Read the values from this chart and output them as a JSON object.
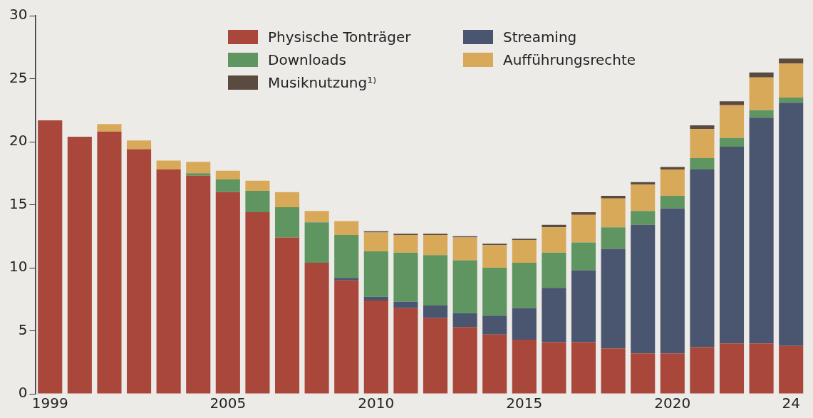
{
  "chart_data": {
    "type": "bar",
    "stacked": true,
    "legend": "top left",
    "grid": false,
    "categories": [
      "1999",
      null,
      null,
      null,
      null,
      null,
      "2005",
      null,
      null,
      null,
      null,
      "2010",
      null,
      null,
      null,
      null,
      "2015",
      null,
      null,
      null,
      null,
      "2020",
      null,
      null,
      null,
      "24"
    ],
    "ylim": [
      0,
      30
    ],
    "yticks": [
      0,
      5,
      10,
      15,
      20,
      25,
      30
    ],
    "series": [
      {
        "name": "Physische Tonträger",
        "color": "#a8473a",
        "values": [
          21.7,
          20.4,
          20.8,
          19.4,
          17.8,
          17.3,
          16.0,
          14.4,
          12.4,
          10.4,
          9.0,
          7.4,
          6.8,
          6.0,
          5.3,
          4.7,
          4.3,
          4.1,
          4.1,
          3.6,
          3.2,
          3.2,
          3.7,
          4.0,
          4.0,
          3.8
        ]
      },
      {
        "name": "Streaming",
        "color": "#4a5570",
        "values": [
          null,
          null,
          null,
          null,
          null,
          null,
          null,
          null,
          null,
          null,
          0.2,
          0.3,
          0.5,
          1.0,
          1.1,
          1.5,
          2.5,
          4.3,
          5.7,
          7.9,
          10.2,
          11.5,
          14.1,
          15.6,
          17.9,
          19.3
        ]
      },
      {
        "name": "Downloads",
        "color": "#5f9560",
        "values": [
          null,
          null,
          null,
          null,
          null,
          0.2,
          1.0,
          1.7,
          2.4,
          3.2,
          3.4,
          3.6,
          3.9,
          4.0,
          4.2,
          3.8,
          3.6,
          2.8,
          2.2,
          1.7,
          1.1,
          1.0,
          0.9,
          0.7,
          0.6,
          0.4
        ]
      },
      {
        "name": "Aufführungsrechte",
        "color": "#d9a95a",
        "values": [
          null,
          null,
          0.6,
          0.7,
          0.7,
          0.9,
          0.7,
          0.8,
          1.2,
          0.9,
          1.1,
          1.5,
          1.4,
          1.6,
          1.8,
          1.8,
          1.8,
          2.0,
          2.2,
          2.3,
          2.1,
          2.1,
          2.3,
          2.6,
          2.6,
          2.7
        ]
      },
      {
        "name": "Musiknutzung¹⁾",
        "color": "#5a4a40",
        "values": [
          null,
          null,
          null,
          null,
          null,
          null,
          null,
          null,
          null,
          null,
          null,
          0.1,
          0.1,
          0.1,
          0.1,
          0.1,
          0.1,
          0.2,
          0.2,
          0.2,
          0.2,
          0.2,
          0.3,
          0.3,
          0.4,
          0.4
        ]
      }
    ]
  }
}
